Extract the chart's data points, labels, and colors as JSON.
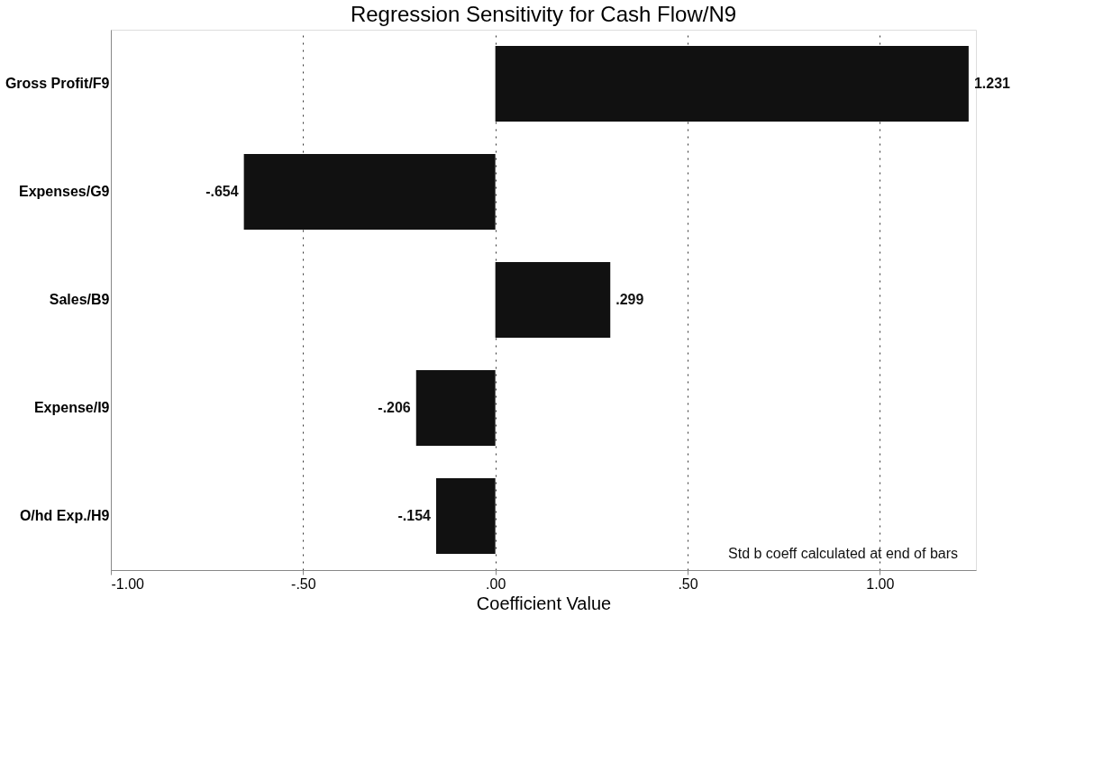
{
  "chart_data": {
    "type": "bar",
    "orientation": "horizontal",
    "title": "Regression Sensitivity for Cash Flow/N9",
    "xlabel": "Coefficient Value",
    "categories": [
      "Gross Profit/F9",
      "Expenses/G9",
      "Sales/B9",
      "Expense/I9",
      "O/hd Exp./H9"
    ],
    "values": [
      1.231,
      -0.654,
      0.299,
      -0.206,
      -0.154
    ],
    "value_labels": [
      "1.231",
      "-.654",
      ".299",
      "-.206",
      "-.154"
    ],
    "color": "#111111",
    "xlim": [
      -1,
      1.25
    ],
    "xticks": [
      {
        "value": -1,
        "label": "-1.00"
      },
      {
        "value": -0.5,
        "label": "-.50"
      },
      {
        "value": 0,
        "label": ".00"
      },
      {
        "value": 0.5,
        "label": ".50"
      },
      {
        "value": 1,
        "label": "1.00"
      }
    ],
    "grid": "x",
    "annotations": [
      "Std b coeff calculated at end of bars"
    ]
  }
}
